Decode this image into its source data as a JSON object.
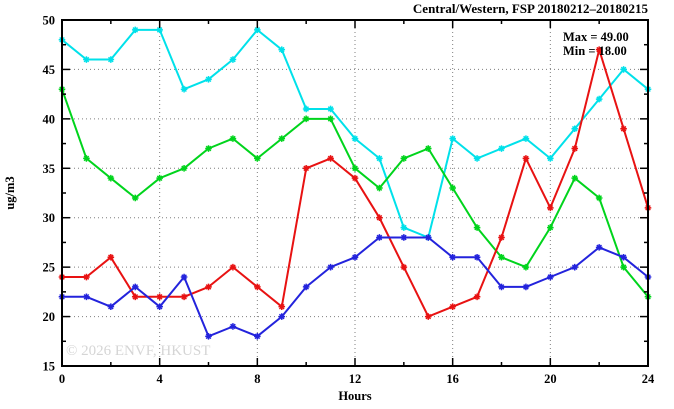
{
  "header": {
    "title": "Central/Western, FSP 20180212–20180215"
  },
  "annotations": {
    "max_label": "Max = 49.00",
    "min_label": "Min = 18.00"
  },
  "watermark": "© 2026 ENVF, HKUST",
  "colors": {
    "series_cyan": "#00e1ea",
    "series_green": "#00d41c",
    "series_red": "#e81212",
    "series_blue": "#2323dc",
    "grid": "#7f7f7f",
    "axis": "#000000",
    "watermark": "#d5d5d5"
  },
  "chart_data": {
    "type": "line",
    "title": "Central/Western, FSP 20180212–20180215",
    "xlabel": "Hours",
    "ylabel": "ug/m3",
    "xlim": [
      0,
      24
    ],
    "ylim": [
      15,
      50
    ],
    "x_major_ticks": [
      0,
      4,
      8,
      12,
      16,
      20,
      24
    ],
    "x_minor_ticks": [
      2,
      6,
      10,
      14,
      18,
      22
    ],
    "y_major_ticks": [
      15,
      20,
      25,
      30,
      35,
      40,
      45,
      50
    ],
    "y_minor_ticks": [
      17.5,
      22.5,
      27.5,
      32.5,
      37.5,
      42.5,
      47.5
    ],
    "grid": true,
    "legend_position": "none",
    "max_value": 49.0,
    "min_value": 18.0,
    "x": [
      0,
      1,
      2,
      3,
      4,
      5,
      6,
      7,
      8,
      9,
      10,
      11,
      12,
      13,
      14,
      15,
      16,
      17,
      18,
      19,
      20,
      21,
      22,
      23,
      24
    ],
    "series": [
      {
        "name": "cyan-series",
        "color": "#00e1ea",
        "values": [
          48,
          46,
          46,
          49,
          49,
          43,
          44,
          46,
          49,
          47,
          41,
          41,
          38,
          36,
          29,
          28,
          38,
          36,
          37,
          38,
          36,
          39,
          42,
          45,
          43
        ]
      },
      {
        "name": "green-series",
        "color": "#00d41c",
        "values": [
          43,
          36,
          34,
          32,
          34,
          35,
          37,
          38,
          36,
          38,
          40,
          40,
          35,
          33,
          36,
          37,
          33,
          29,
          26,
          25,
          29,
          34,
          32,
          25,
          22
        ]
      },
      {
        "name": "red-series",
        "color": "#e81212",
        "values": [
          24,
          24,
          26,
          22,
          22,
          22,
          23,
          25,
          23,
          21,
          35,
          36,
          34,
          30,
          25,
          20,
          21,
          22,
          28,
          36,
          31,
          37,
          47,
          39,
          31
        ]
      },
      {
        "name": "blue-series",
        "color": "#2323dc",
        "values": [
          22,
          22,
          21,
          23,
          21,
          24,
          18,
          19,
          18,
          20,
          23,
          25,
          26,
          28,
          28,
          28,
          26,
          26,
          23,
          23,
          24,
          25,
          27,
          26,
          24
        ]
      }
    ]
  }
}
